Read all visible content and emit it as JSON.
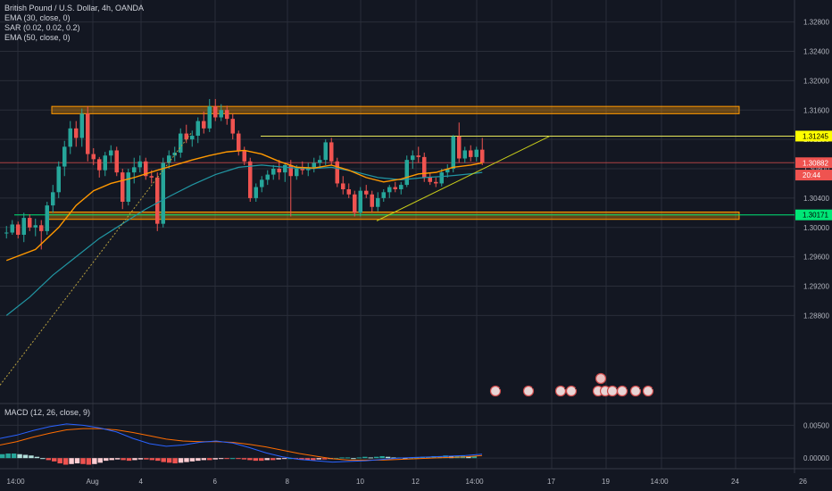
{
  "header": {
    "symbol_line": "British Pound / U.S. Dollar, 4h, OANDA",
    "indicators": [
      "EMA (30, close, 0)",
      "SAR (0.02, 0.02, 0.2)",
      "EMA (50, close, 0)"
    ]
  },
  "macd_label": "MACD (12, 26, close, 9)",
  "colors": {
    "background": "#131722",
    "grid": "#2a2e39",
    "up": "#26a69a",
    "down": "#ef5350",
    "ema30": "#ff9800",
    "ema50": "#2196a3",
    "zone": "#ff9800",
    "trendline": "#c8cc1a",
    "macd_line": "#2962ff",
    "signal_line": "#ff6d00"
  },
  "chart_data": {
    "type": "candlestick",
    "ylim": [
      1.276,
      1.331
    ],
    "y_ticks": [
      "1.32800",
      "1.32400",
      "1.32000",
      "1.31600",
      "1.31200",
      "1.30800",
      "1.30400",
      "1.30000",
      "1.29600",
      "1.29200",
      "1.28800"
    ],
    "x_ticks": [
      "14:00",
      "Aug",
      "4",
      "6",
      "8",
      "10",
      "12",
      "14:00",
      "17",
      "19",
      "14:00",
      "24",
      "26"
    ],
    "price_labels": [
      {
        "text": "1.31245",
        "value": 1.31245,
        "color": "#ffff00",
        "text_color": "#000000"
      },
      {
        "text": "1.30882",
        "value": 1.30882,
        "color": "#ef5350",
        "text_color": "#ffffff"
      },
      {
        "text": "20:44",
        "value": 1.30714,
        "color": "#ef5350",
        "text_color": "#ffffff"
      },
      {
        "text": "1.30171",
        "value": 1.30171,
        "color": "#00e676",
        "text_color": "#000000"
      }
    ],
    "zones": [
      {
        "top": 1.3165,
        "bottom": 1.3155
      },
      {
        "top": 1.3021,
        "bottom": 1.3011
      }
    ],
    "resistance_line": 1.31245,
    "current_price_line": 1.30882,
    "support_line": 1.30171,
    "candles": [
      [
        1.2993,
        1.3002,
        1.2985,
        1.2993
      ],
      [
        1.2993,
        1.301,
        1.299,
        1.3004
      ],
      [
        1.3004,
        1.3008,
        1.2985,
        1.299
      ],
      [
        1.299,
        1.302,
        1.298,
        1.3013
      ],
      [
        1.3013,
        1.3018,
        1.2995,
        1.3
      ],
      [
        1.3,
        1.3012,
        1.2988,
        1.3003
      ],
      [
        1.3003,
        1.301,
        1.297,
        1.2995
      ],
      [
        1.2995,
        1.3035,
        1.299,
        1.303
      ],
      [
        1.303,
        1.3058,
        1.302,
        1.3048
      ],
      [
        1.3048,
        1.309,
        1.304,
        1.3083
      ],
      [
        1.3083,
        1.3118,
        1.307,
        1.311
      ],
      [
        1.311,
        1.3145,
        1.31,
        1.3135
      ],
      [
        1.3135,
        1.3145,
        1.311,
        1.3122
      ],
      [
        1.3122,
        1.3162,
        1.311,
        1.3155
      ],
      [
        1.3155,
        1.3165,
        1.309,
        1.31
      ],
      [
        1.31,
        1.3108,
        1.3085,
        1.3093
      ],
      [
        1.3093,
        1.3096,
        1.3068,
        1.3078
      ],
      [
        1.3078,
        1.3103,
        1.307,
        1.3098
      ],
      [
        1.3098,
        1.3112,
        1.3088,
        1.3105
      ],
      [
        1.3105,
        1.311,
        1.307,
        1.3075
      ],
      [
        1.3075,
        1.308,
        1.3025,
        1.3035
      ],
      [
        1.3035,
        1.308,
        1.303,
        1.3075
      ],
      [
        1.3075,
        1.3095,
        1.306,
        1.3082
      ],
      [
        1.3082,
        1.3098,
        1.3075,
        1.309
      ],
      [
        1.309,
        1.3095,
        1.3065,
        1.307
      ],
      [
        1.307,
        1.3078,
        1.306,
        1.3068
      ],
      [
        1.3068,
        1.3075,
        1.2995,
        1.3005
      ],
      [
        1.3005,
        1.3095,
        1.3,
        1.3088
      ],
      [
        1.3088,
        1.3105,
        1.308,
        1.3098
      ],
      [
        1.3098,
        1.311,
        1.309,
        1.3102
      ],
      [
        1.3102,
        1.3135,
        1.3095,
        1.3128
      ],
      [
        1.3128,
        1.314,
        1.3115,
        1.312
      ],
      [
        1.312,
        1.3132,
        1.311,
        1.3125
      ],
      [
        1.3125,
        1.315,
        1.3115,
        1.3145
      ],
      [
        1.3145,
        1.3158,
        1.3128,
        1.3135
      ],
      [
        1.3135,
        1.3175,
        1.313,
        1.3165
      ],
      [
        1.3165,
        1.3175,
        1.3145,
        1.315
      ],
      [
        1.315,
        1.3168,
        1.3145,
        1.316
      ],
      [
        1.316,
        1.3166,
        1.314,
        1.3148
      ],
      [
        1.3148,
        1.3155,
        1.312,
        1.3128
      ],
      [
        1.3128,
        1.3132,
        1.3098,
        1.3105
      ],
      [
        1.3105,
        1.311,
        1.3085,
        1.309
      ],
      [
        1.309,
        1.3095,
        1.3035,
        1.304
      ],
      [
        1.304,
        1.306,
        1.3035,
        1.3055
      ],
      [
        1.3055,
        1.307,
        1.3048,
        1.3065
      ],
      [
        1.3065,
        1.3078,
        1.3058,
        1.3072
      ],
      [
        1.3072,
        1.3085,
        1.3065,
        1.308
      ],
      [
        1.308,
        1.3092,
        1.3065,
        1.3075
      ],
      [
        1.3075,
        1.3088,
        1.3062,
        1.3085
      ],
      [
        1.3085,
        1.3092,
        1.3015,
        1.307
      ],
      [
        1.307,
        1.3085,
        1.3065,
        1.308
      ],
      [
        1.308,
        1.309,
        1.3072,
        1.3078
      ],
      [
        1.3078,
        1.3088,
        1.307,
        1.3082
      ],
      [
        1.3082,
        1.3095,
        1.3075,
        1.3088
      ],
      [
        1.3088,
        1.3098,
        1.308,
        1.3092
      ],
      [
        1.3092,
        1.312,
        1.3085,
        1.3116
      ],
      [
        1.3116,
        1.3122,
        1.3085,
        1.309
      ],
      [
        1.309,
        1.3095,
        1.3055,
        1.306
      ],
      [
        1.306,
        1.307,
        1.3045,
        1.3052
      ],
      [
        1.3052,
        1.306,
        1.304,
        1.3045
      ],
      [
        1.3045,
        1.305,
        1.3015,
        1.302
      ],
      [
        1.302,
        1.3055,
        1.3015,
        1.305
      ],
      [
        1.305,
        1.3058,
        1.304,
        1.3045
      ],
      [
        1.3045,
        1.305,
        1.302,
        1.3028
      ],
      [
        1.3028,
        1.3048,
        1.3022,
        1.304
      ],
      [
        1.304,
        1.3052,
        1.3035,
        1.3048
      ],
      [
        1.3048,
        1.3058,
        1.304,
        1.3055
      ],
      [
        1.3055,
        1.3062,
        1.3048,
        1.3052
      ],
      [
        1.3052,
        1.3062,
        1.3045,
        1.3058
      ],
      [
        1.3058,
        1.3098,
        1.3055,
        1.3092
      ],
      [
        1.3092,
        1.3105,
        1.308,
        1.3098
      ],
      [
        1.3098,
        1.311,
        1.3088,
        1.3096
      ],
      [
        1.3096,
        1.3102,
        1.3062,
        1.3068
      ],
      [
        1.3068,
        1.3075,
        1.3058,
        1.3062
      ],
      [
        1.3062,
        1.3068,
        1.3055,
        1.306
      ],
      [
        1.306,
        1.308,
        1.3056,
        1.3075
      ],
      [
        1.3075,
        1.3086,
        1.3068,
        1.308
      ],
      [
        1.308,
        1.3126,
        1.3075,
        1.3124
      ],
      [
        1.3124,
        1.3143,
        1.3088,
        1.3094
      ],
      [
        1.3094,
        1.311,
        1.3088,
        1.3105
      ],
      [
        1.3105,
        1.3112,
        1.309,
        1.3096
      ],
      [
        1.3096,
        1.311,
        1.309,
        1.3106
      ],
      [
        1.3106,
        1.3122,
        1.3085,
        1.3088
      ]
    ],
    "ema30": [
      [
        0,
        1.2955
      ],
      [
        5,
        1.297
      ],
      [
        9,
        1.3
      ],
      [
        12,
        1.303
      ],
      [
        15,
        1.305
      ],
      [
        18,
        1.306
      ],
      [
        22,
        1.3068
      ],
      [
        26,
        1.3078
      ],
      [
        29,
        1.3085
      ],
      [
        32,
        1.3092
      ],
      [
        35,
        1.3098
      ],
      [
        38,
        1.3103
      ],
      [
        41,
        1.3105
      ],
      [
        44,
        1.31
      ],
      [
        47,
        1.309
      ],
      [
        50,
        1.3082
      ],
      [
        53,
        1.3081
      ],
      [
        56,
        1.3085
      ],
      [
        59,
        1.3078
      ],
      [
        62,
        1.3068
      ],
      [
        65,
        1.3062
      ],
      [
        68,
        1.3066
      ],
      [
        71,
        1.3073
      ],
      [
        74,
        1.3075
      ],
      [
        77,
        1.3082
      ],
      [
        80,
        1.3085
      ],
      [
        82,
        1.3088
      ]
    ],
    "ema50": [
      [
        0,
        1.288
      ],
      [
        4,
        1.2905
      ],
      [
        8,
        1.2935
      ],
      [
        12,
        1.296
      ],
      [
        16,
        1.2985
      ],
      [
        20,
        1.3005
      ],
      [
        24,
        1.3025
      ],
      [
        28,
        1.3042
      ],
      [
        32,
        1.3058
      ],
      [
        36,
        1.3072
      ],
      [
        40,
        1.3082
      ],
      [
        44,
        1.3085
      ],
      [
        48,
        1.3082
      ],
      [
        52,
        1.308
      ],
      [
        56,
        1.3082
      ],
      [
        60,
        1.3076
      ],
      [
        64,
        1.3068
      ],
      [
        68,
        1.3065
      ],
      [
        72,
        1.3068
      ],
      [
        76,
        1.307
      ],
      [
        80,
        1.3073
      ],
      [
        82,
        1.3075
      ]
    ],
    "trendline": [
      [
        60,
        1.3009
      ],
      [
        85,
        1.31245
      ]
    ],
    "macd_ylim": [
      -0.0012,
      0.0075
    ],
    "macd_ticks": [
      "0.00500",
      "0.00000"
    ],
    "macd_line": [
      0.003,
      0.0035,
      0.0042,
      0.0048,
      0.0052,
      0.005,
      0.0046,
      0.004,
      0.003,
      0.0022,
      0.0018,
      0.002,
      0.0024,
      0.0026,
      0.0023,
      0.0016,
      0.0008,
      0.0002,
      -0.0002,
      -0.0004,
      -0.0006,
      -0.0005,
      -0.0004,
      -0.0002,
      0.0,
      0.0001,
      0.0002,
      0.0003,
      0.0004,
      0.0006
    ],
    "signal_line": [
      0.002,
      0.0025,
      0.0032,
      0.0038,
      0.0043,
      0.0045,
      0.0045,
      0.0043,
      0.0039,
      0.0034,
      0.0029,
      0.0026,
      0.0025,
      0.0025,
      0.0024,
      0.0021,
      0.0017,
      0.0012,
      0.0007,
      0.0003,
      -0.0001,
      -0.0003,
      -0.0003,
      -0.0003,
      -0.0002,
      -0.0001,
      0.0,
      0.0001,
      0.0002,
      0.0004
    ],
    "histogram": [
      0.0006,
      0.0007,
      0.0007,
      0.0006,
      0.0005,
      0.0004,
      0.0002,
      0.0,
      -0.0003,
      -0.0005,
      -0.0008,
      -0.001,
      -0.0009,
      -0.0008,
      -0.0009,
      -0.001,
      -0.0009,
      -0.0007,
      -0.0004,
      -0.0003,
      -0.0002,
      -0.0003,
      -0.0004,
      -0.0003,
      -0.0002,
      -0.0002,
      -0.0003,
      -0.0004,
      -0.0006,
      -0.0007,
      -0.0008,
      -0.0007,
      -0.0006,
      -0.0005,
      -0.0004,
      -0.0003,
      -0.0003,
      -0.0002,
      -0.0001,
      -0.0001,
      0.0,
      -0.0001,
      -0.0002,
      -0.0003,
      -0.0004,
      -0.0004,
      -0.0003,
      -0.0003,
      -0.0002,
      -0.0001,
      0.0,
      -0.0001,
      -0.0002,
      -0.0003,
      -0.0003,
      -0.0002,
      -0.0002,
      -0.0001,
      0.0,
      0.0001,
      0.0001,
      0.0,
      0.0001,
      0.0002,
      0.0001,
      0.0002,
      0.0003,
      0.0002,
      0.0001,
      0.0001,
      0.0,
      0.0001,
      0.0001,
      0.0002,
      0.0002,
      0.0003,
      0.0003,
      0.0004,
      0.0003,
      0.0003,
      0.0004,
      0.0003,
      0.0003
    ],
    "event_markers": [
      {
        "x": 69,
        "label": "2"
      },
      {
        "x": 73,
        "label": "4"
      },
      {
        "x": 77,
        "label": "2"
      },
      {
        "x": 78,
        "label": "2"
      },
      {
        "x": 82,
        "label": "1"
      },
      {
        "x": 82.7,
        "label": "4"
      },
      {
        "x": 83.3,
        "label": "2"
      },
      {
        "x": 84,
        "label": "1"
      },
      {
        "x": 86,
        "label": "2"
      },
      {
        "x": 87,
        "label": "2"
      }
    ]
  }
}
